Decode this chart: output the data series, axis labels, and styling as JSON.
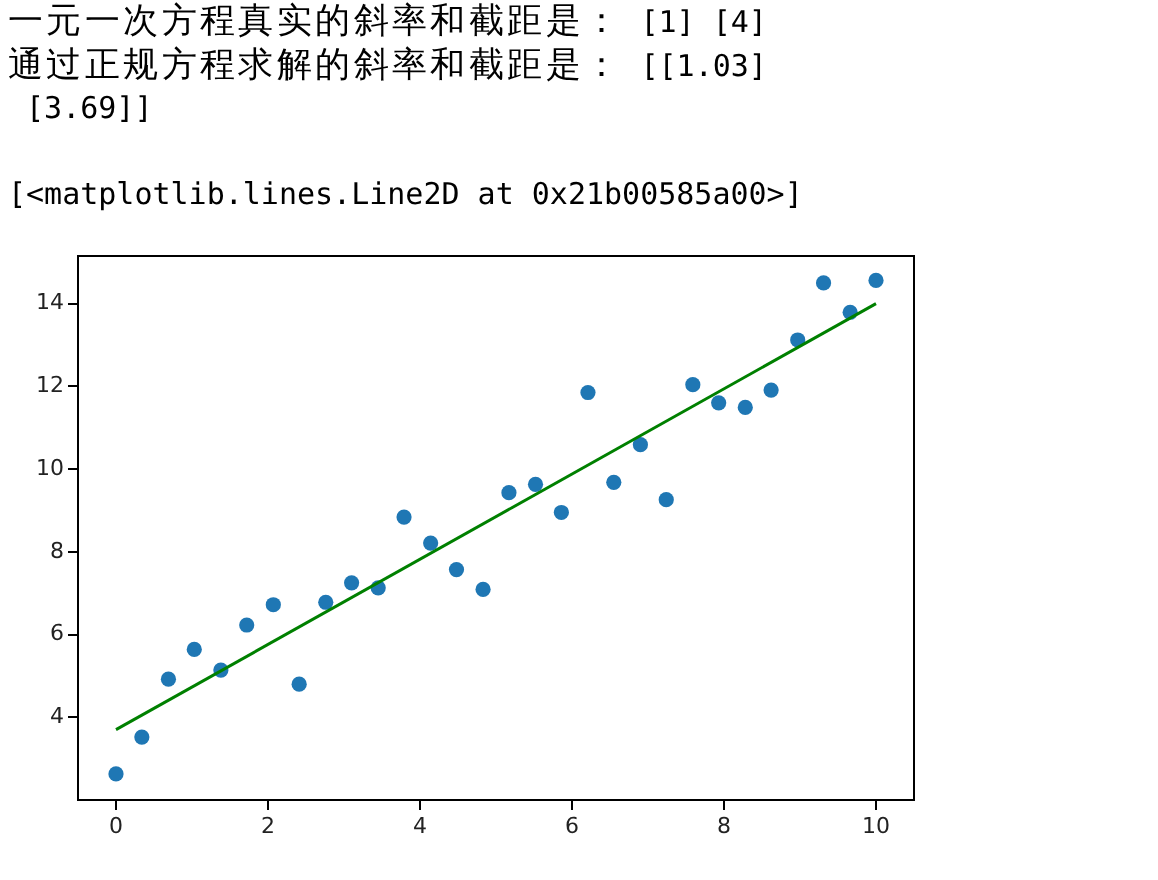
{
  "chart_data": {
    "type": "scatter",
    "annotations": [
      "一元一次方程真实的斜率和截距是： [1] [4]",
      "通过正规方程求解的斜率和截距是： [[1.03]\n [3.69]]",
      "[<matplotlib.lines.Line2D at 0x21b00585a00>]"
    ],
    "series": [
      {
        "type": "scatter",
        "color": "#1f77b4",
        "marker": "circle",
        "x": [
          0,
          0.34,
          0.69,
          1.03,
          1.38,
          1.72,
          2.07,
          2.41,
          2.76,
          3.1,
          3.45,
          3.79,
          4.14,
          4.48,
          4.83,
          5.17,
          5.52,
          5.86,
          6.21,
          6.55,
          6.9,
          7.24,
          7.59,
          7.93,
          8.28,
          8.62,
          8.97,
          9.31,
          9.66,
          10
        ],
        "values": [
          2.63,
          3.52,
          4.92,
          5.64,
          5.14,
          6.23,
          6.72,
          4.8,
          6.78,
          7.25,
          7.13,
          8.84,
          8.21,
          7.57,
          7.09,
          9.43,
          9.63,
          8.95,
          11.85,
          9.68,
          10.59,
          9.26,
          12.04,
          11.6,
          11.49,
          11.91,
          13.12,
          14.5,
          13.79,
          14.56
        ]
      },
      {
        "type": "line",
        "color": "#008000",
        "marker": "none",
        "line_style": "solid",
        "x": [
          0,
          10
        ],
        "values": [
          3.7,
          14.0
        ]
      }
    ],
    "xlim": [
      -0.5,
      10.5
    ],
    "ylim": [
      2.0,
      15.15
    ],
    "xticks": [
      0,
      2,
      4,
      6,
      8,
      10
    ],
    "yticks": [
      4,
      6,
      8,
      10,
      12,
      14
    ],
    "grid": false,
    "legend": false
  }
}
